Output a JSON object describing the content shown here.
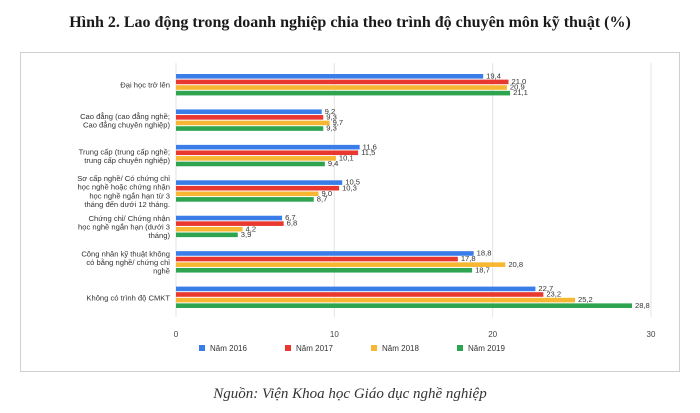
{
  "header": {
    "title_prefix": "Hình 2.",
    "title_rest": "Lao động trong doanh nghiệp chia theo trình độ chuyên môn kỹ thuật (%)"
  },
  "footer": {
    "source": "Nguồn: Viện Khoa học Giáo dục nghề nghiệp"
  },
  "colors": {
    "Năm 2016": "#3b7de8",
    "Năm 2017": "#e8382f",
    "Năm 2018": "#f7b733",
    "Năm 2019": "#2ea44f"
  },
  "chart_data": {
    "type": "bar",
    "orientation": "horizontal",
    "title": "Lao động trong doanh nghiệp chia theo trình độ chuyên môn kỹ thuật (%)",
    "xlim": [
      0,
      30
    ],
    "xticks": [
      0,
      10,
      20,
      30
    ],
    "grid": true,
    "legend_position": "bottom",
    "categories": [
      [
        "Đại học trở lên"
      ],
      [
        "Cao đẳng (cao đẳng nghề;",
        "Cao đẳng chuyên nghiệp)"
      ],
      [
        "Trung cấp (trung cấp nghề;",
        "trung cấp chuyên nghiệp)"
      ],
      [
        "Sơ cấp nghề/ Có chứng chỉ",
        "học nghề hoặc chứng nhận",
        "học nghề ngắn hạn từ 3",
        "tháng đến dưới 12 tháng."
      ],
      [
        "Chứng chỉ/ Chứng nhận",
        "học nghề ngắn hạn (dưới 3",
        "tháng)"
      ],
      [
        "Công nhân kỹ thuật không",
        "có bằng nghề/ chứng chỉ",
        "nghề"
      ],
      [
        "Không có trình độ CMKT"
      ]
    ],
    "series": [
      {
        "name": "Năm 2016",
        "values": [
          19.4,
          9.2,
          11.6,
          10.5,
          6.7,
          18.8,
          22.7
        ],
        "labels": [
          "19,4",
          "9,2",
          "11,6",
          "10,5",
          "6,7",
          "18,8",
          "22,7"
        ]
      },
      {
        "name": "Năm 2017",
        "values": [
          21.0,
          9.3,
          11.5,
          10.3,
          6.8,
          17.8,
          23.2
        ],
        "labels": [
          "21,0",
          "9,3",
          "11,5",
          "10,3",
          "6,8",
          "17,8",
          "23,2"
        ]
      },
      {
        "name": "Năm 2018",
        "values": [
          20.9,
          9.7,
          10.1,
          9.0,
          4.2,
          20.8,
          25.2
        ],
        "labels": [
          "20,9",
          "9,7",
          "10,1",
          "9,0",
          "4,2",
          "20,8",
          "25,2"
        ]
      },
      {
        "name": "Năm 2019",
        "values": [
          21.1,
          9.3,
          9.4,
          8.7,
          3.9,
          18.7,
          28.8
        ],
        "labels": [
          "21,1",
          "9,3",
          "9,4",
          "8,7",
          "3,9",
          "18,7",
          "28,8"
        ]
      }
    ]
  }
}
